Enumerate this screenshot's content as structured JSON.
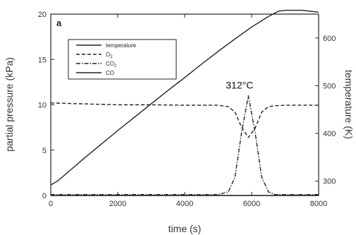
{
  "chart_data": {
    "type": "line",
    "panel_label": "a",
    "xlabel": "time (s)",
    "ylabel": "partial pressure (kPa)",
    "y2label": "temperature (K)",
    "xlim": [
      0,
      8000
    ],
    "ylim": [
      0,
      20
    ],
    "y2lim": [
      270,
      650
    ],
    "xticks": [
      0,
      2000,
      4000,
      6000,
      8000
    ],
    "yticks": [
      0,
      5,
      10,
      15,
      20
    ],
    "y2ticks": [
      300,
      400,
      500,
      600
    ],
    "grid": false,
    "legend": {
      "placement": "top-left",
      "entries": [
        {
          "label": "temperature",
          "style": "solid"
        },
        {
          "label": "O",
          "sub": "2",
          "style": "dashed"
        },
        {
          "label": "CO",
          "sub": "2",
          "style": "dashdot"
        },
        {
          "label": "CO",
          "sub": "",
          "style": "solid"
        }
      ]
    },
    "annotation": {
      "value": "312",
      "unit": "°C",
      "x": 5900,
      "y": 11.0
    },
    "series": [
      {
        "name": "temperature",
        "axis": "right",
        "style": "solid",
        "x": [
          0,
          200,
          500,
          1000,
          1500,
          2000,
          2500,
          3000,
          3500,
          4000,
          4500,
          5000,
          5500,
          6000,
          6500,
          6800,
          7000,
          7500,
          8000
        ],
        "y": [
          292,
          300,
          318,
          348,
          377,
          406,
          434,
          462,
          490,
          517,
          545,
          572,
          598,
          623,
          645,
          656,
          658,
          658,
          654
        ]
      },
      {
        "name": "O2",
        "axis": "left",
        "style": "dashed",
        "x": [
          0,
          1000,
          2000,
          3000,
          4000,
          5000,
          5300,
          5500,
          5700,
          5900,
          6100,
          6300,
          6500,
          6700,
          7000,
          8000
        ],
        "y": [
          10.2,
          10.1,
          10.0,
          10.0,
          9.95,
          9.95,
          9.8,
          9.2,
          7.5,
          6.4,
          7.4,
          9.2,
          9.8,
          9.9,
          9.95,
          9.95
        ]
      },
      {
        "name": "CO2",
        "axis": "left",
        "style": "dashdot",
        "x": [
          0,
          1000,
          2000,
          3000,
          4000,
          5000,
          5300,
          5500,
          5700,
          5900,
          6100,
          6300,
          6500,
          6700,
          7000,
          8000
        ],
        "y": [
          0.1,
          0.1,
          0.1,
          0.1,
          0.1,
          0.1,
          0.4,
          2.0,
          7.0,
          11.0,
          7.0,
          2.0,
          0.4,
          0.1,
          0.1,
          0.1
        ]
      },
      {
        "name": "CO",
        "axis": "left",
        "style": "solid",
        "x": [
          0,
          2000,
          4000,
          6000,
          8000
        ],
        "y": [
          0,
          0,
          0,
          0,
          0
        ]
      }
    ]
  }
}
